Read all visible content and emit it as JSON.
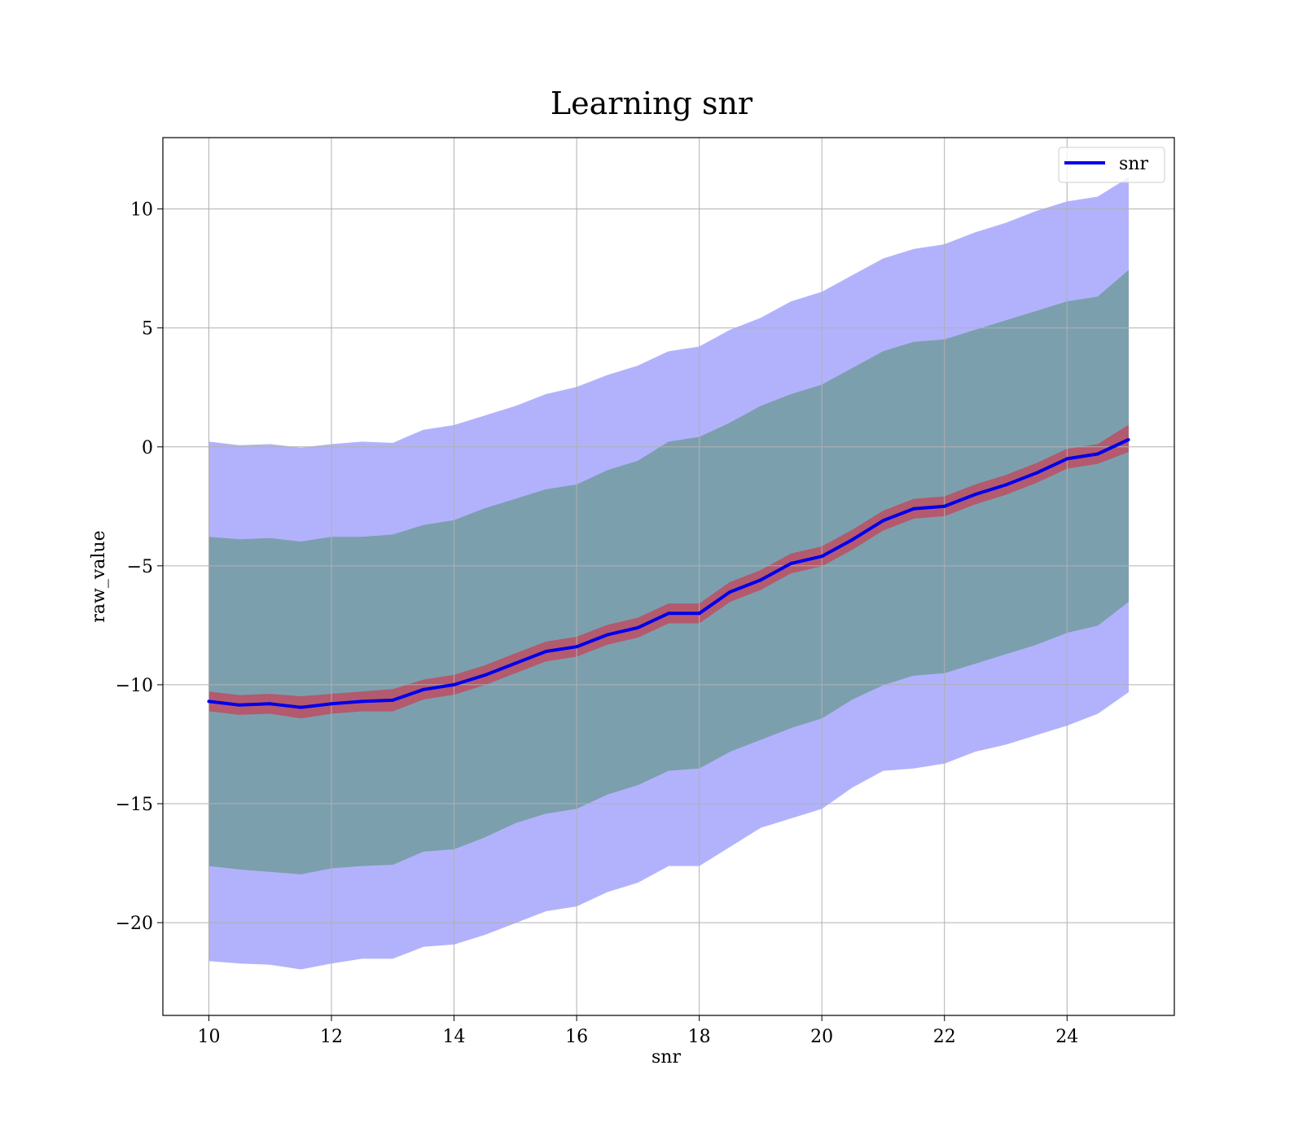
{
  "chart_data": {
    "type": "line",
    "title": "Learning snr",
    "xlabel": "snr",
    "ylabel": "raw_value",
    "xlim": [
      9.25,
      25.75
    ],
    "ylim": [
      -23.9,
      13.0
    ],
    "xticks": [
      10,
      12,
      14,
      16,
      18,
      20,
      22,
      24
    ],
    "yticks": [
      10,
      5,
      0,
      -5,
      -10,
      -15,
      -20
    ],
    "ytick_labels": [
      "10",
      "5",
      "0",
      "−5",
      "−10",
      "−15",
      "−20"
    ],
    "grid": true,
    "legend": {
      "position": "top-right",
      "entries": [
        "snr"
      ]
    },
    "colors": {
      "line": "#0000ee",
      "outer_band": "#b2b2fc",
      "middle_band": "#7c9fae",
      "inner_band": "#b35a6e"
    },
    "x": [
      10,
      10.5,
      11,
      11.5,
      12,
      12.5,
      13,
      13.5,
      14,
      14.5,
      15,
      15.5,
      16,
      16.5,
      17,
      17.5,
      18,
      18.5,
      19,
      19.5,
      20,
      20.5,
      21,
      21.5,
      22,
      22.5,
      23,
      23.5,
      24,
      24.5,
      25
    ],
    "series": [
      {
        "name": "snr",
        "values": [
          -10.7,
          -10.85,
          -10.8,
          -10.95,
          -10.8,
          -10.7,
          -10.65,
          -10.2,
          -10.0,
          -9.6,
          -9.1,
          -8.6,
          -8.4,
          -7.9,
          -7.6,
          -7.0,
          -7.0,
          -6.1,
          -5.6,
          -4.9,
          -4.6,
          -3.9,
          -3.1,
          -2.6,
          -2.5,
          -2.0,
          -1.6,
          -1.1,
          -0.5,
          -0.3,
          0.3
        ]
      }
    ],
    "bands": [
      {
        "label": "outer",
        "lower": [
          -21.6,
          -21.7,
          -21.75,
          -21.95,
          -21.7,
          -21.5,
          -21.5,
          -21.0,
          -20.9,
          -20.5,
          -20.0,
          -19.5,
          -19.3,
          -18.7,
          -18.3,
          -17.6,
          -17.6,
          -16.8,
          -16.0,
          -15.6,
          -15.2,
          -14.3,
          -13.6,
          -13.5,
          -13.3,
          -12.8,
          -12.5,
          -12.1,
          -11.7,
          -11.2,
          -10.3
        ],
        "upper": [
          0.2,
          0.05,
          0.1,
          -0.05,
          0.1,
          0.2,
          0.15,
          0.7,
          0.9,
          1.3,
          1.7,
          2.2,
          2.5,
          3.0,
          3.4,
          4.0,
          4.2,
          4.9,
          5.4,
          6.1,
          6.5,
          7.2,
          7.9,
          8.3,
          8.5,
          9.0,
          9.4,
          9.9,
          10.3,
          10.5,
          11.3
        ]
      },
      {
        "label": "middle",
        "lower": [
          -17.6,
          -17.75,
          -17.85,
          -17.95,
          -17.7,
          -17.6,
          -17.55,
          -17.0,
          -16.9,
          -16.4,
          -15.8,
          -15.4,
          -15.2,
          -14.6,
          -14.2,
          -13.6,
          -13.5,
          -12.8,
          -12.3,
          -11.8,
          -11.4,
          -10.6,
          -10.0,
          -9.6,
          -9.5,
          -9.1,
          -8.7,
          -8.3,
          -7.8,
          -7.5,
          -6.5
        ],
        "upper": [
          -3.8,
          -3.9,
          -3.85,
          -4.0,
          -3.8,
          -3.8,
          -3.7,
          -3.3,
          -3.1,
          -2.6,
          -2.2,
          -1.8,
          -1.6,
          -1.0,
          -0.6,
          0.2,
          0.4,
          1.0,
          1.7,
          2.2,
          2.6,
          3.3,
          4.0,
          4.4,
          4.5,
          4.9,
          5.3,
          5.7,
          6.1,
          6.3,
          7.4
        ]
      },
      {
        "label": "inner",
        "lower": [
          -11.1,
          -11.25,
          -11.2,
          -11.4,
          -11.2,
          -11.1,
          -11.1,
          -10.6,
          -10.4,
          -10.0,
          -9.5,
          -9.0,
          -8.8,
          -8.3,
          -8.0,
          -7.4,
          -7.4,
          -6.5,
          -6.0,
          -5.3,
          -5.0,
          -4.3,
          -3.5,
          -3.0,
          -2.9,
          -2.4,
          -2.0,
          -1.5,
          -0.9,
          -0.7,
          -0.2
        ],
        "upper": [
          -10.3,
          -10.45,
          -10.4,
          -10.5,
          -10.4,
          -10.3,
          -10.2,
          -9.8,
          -9.6,
          -9.2,
          -8.7,
          -8.2,
          -8.0,
          -7.5,
          -7.2,
          -6.6,
          -6.6,
          -5.7,
          -5.2,
          -4.5,
          -4.2,
          -3.5,
          -2.7,
          -2.2,
          -2.1,
          -1.6,
          -1.2,
          -0.7,
          -0.1,
          0.1,
          0.9
        ]
      }
    ]
  }
}
